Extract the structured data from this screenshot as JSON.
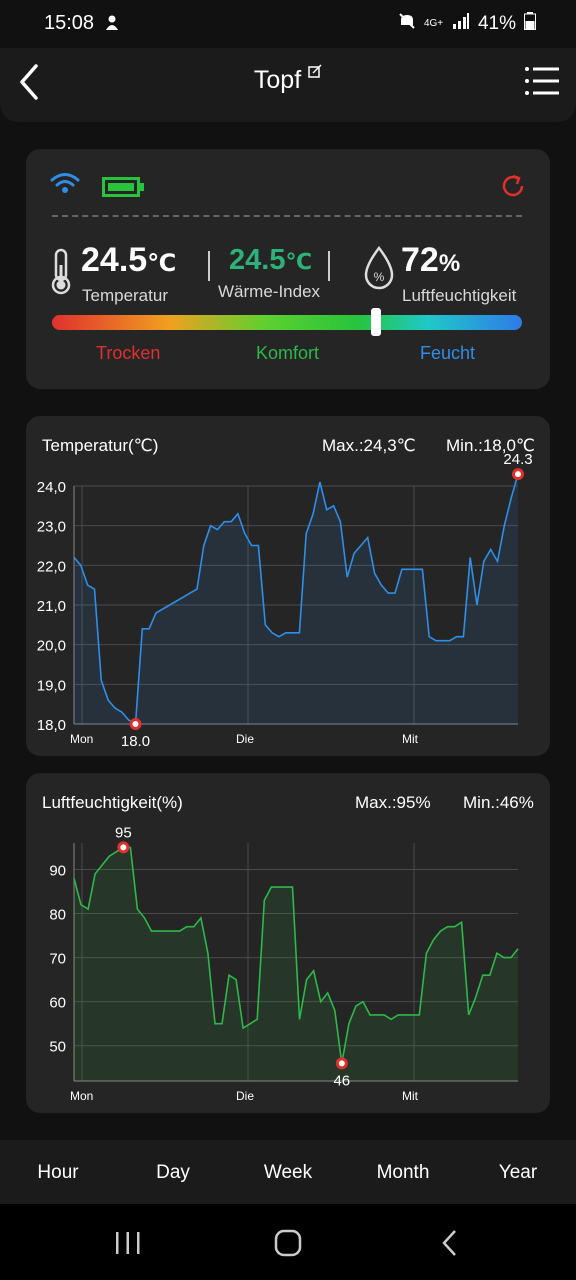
{
  "status": {
    "time": "15:08",
    "battery": "41%",
    "network": "4G+"
  },
  "header": {
    "title": "Topf"
  },
  "summary": {
    "temperature": {
      "value": "24.5",
      "unit": "℃",
      "label": "Temperatur"
    },
    "heat_index": {
      "value": "24.5",
      "unit": "℃",
      "label": "Wärme-Index"
    },
    "humidity": {
      "value": "72",
      "unit": "%",
      "label": "Luftfeuchtigkeit"
    },
    "comfort_scale": {
      "dry": "Trocken",
      "comfort": "Komfort",
      "humid": "Feucht",
      "level": 0.69
    },
    "colors": {
      "heat_index": "#2db37a",
      "dry": "#e0302e",
      "comfort": "#2eb84a",
      "humid": "#2f8ee8",
      "wifi": "#2f8ee8",
      "battery": "#27c43c",
      "refresh": "#e0302e"
    }
  },
  "temp_chart": {
    "title": "Temperatur(℃)",
    "max": "Max.:24,3℃",
    "min": "Min.:18,0℃"
  },
  "hum_chart": {
    "title": "Luftfeuchtigkeit(%)",
    "max": "Max.:95%",
    "min": "Min.:46%"
  },
  "chart_data": [
    {
      "type": "area",
      "ylim": [
        18,
        24
      ],
      "yticks": [
        "24,0",
        "23,0",
        "22,0",
        "21,0",
        "20,0",
        "19,0",
        "18,0"
      ],
      "xticks": [
        "Mon",
        "Die",
        "Mit"
      ],
      "color": "#2f8ee8",
      "annotations": {
        "max": "24.3",
        "min": "18.0"
      },
      "values": [
        22.2,
        22.0,
        21.5,
        21.4,
        19.1,
        18.6,
        18.4,
        18.3,
        18.1,
        18.0,
        20.4,
        20.4,
        20.8,
        20.9,
        21.0,
        21.1,
        21.2,
        21.3,
        21.4,
        22.5,
        23.0,
        22.9,
        23.1,
        23.1,
        23.3,
        22.8,
        22.5,
        22.5,
        20.5,
        20.3,
        20.2,
        20.3,
        20.3,
        20.3,
        22.8,
        23.3,
        24.1,
        23.4,
        23.5,
        23.1,
        21.7,
        22.3,
        22.5,
        22.7,
        21.8,
        21.5,
        21.3,
        21.3,
        21.9,
        21.9,
        21.9,
        21.9,
        20.2,
        20.1,
        20.1,
        20.1,
        20.2,
        20.2,
        22.2,
        21.0,
        22.1,
        22.4,
        22.1,
        23.0,
        23.7,
        24.3
      ]
    },
    {
      "type": "area",
      "ylim": [
        42,
        96
      ],
      "yticks": [
        "90",
        "80",
        "70",
        "60",
        "50"
      ],
      "xticks": [
        "Mon",
        "Die",
        "Mit"
      ],
      "color": "#2eb84a",
      "annotations": {
        "max": "95",
        "min": "46"
      },
      "values": [
        88,
        82,
        81,
        89,
        91,
        93,
        94,
        95,
        95,
        81,
        79,
        76,
        76,
        76,
        76,
        76,
        77,
        77,
        79,
        71,
        55,
        55,
        66,
        65,
        54,
        55,
        56,
        83,
        86,
        86,
        86,
        86,
        56,
        65,
        67,
        60,
        62,
        58,
        46,
        55,
        59,
        60,
        57,
        57,
        57,
        56,
        57,
        57,
        57,
        57,
        71,
        74,
        76,
        77,
        77,
        78,
        57,
        61,
        66,
        66,
        71,
        70,
        70,
        72
      ]
    }
  ],
  "tabs": [
    "Hour",
    "Day",
    "Week",
    "Month",
    "Year"
  ]
}
